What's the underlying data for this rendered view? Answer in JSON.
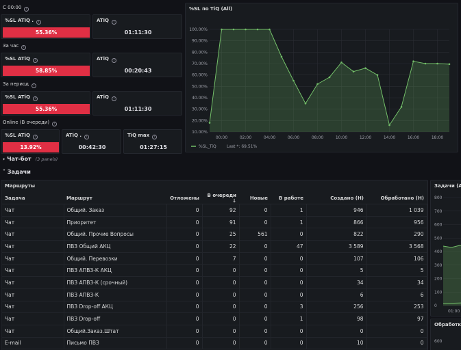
{
  "sla": {
    "c_header": "С 00:00",
    "c_sl_label": "%SL ATiQ .",
    "c_sl_value": "55.36%",
    "c_atiq_label": "ATiQ",
    "c_atiq_value": "01:11:30",
    "hour_header": "За час",
    "hour_sl_label": "%SL ATiQ",
    "hour_sl_value": "58.85%",
    "hour_atiq_label": "ATiQ",
    "hour_atiq_value": "00:20:43",
    "period_header": "За период",
    "period_sl_label": "%SL ATiQ",
    "period_sl_value": "55.36%",
    "period_atiq_label": "ATiQ",
    "period_atiq_value": "01:11:30",
    "online_header": "Online (В очереди)",
    "online_sl_label": "%SL ATiQ",
    "online_sl_value": "13.92%",
    "online_atiq_label": "ATiQ .",
    "online_atiq_value": "00:42:30",
    "online_max_label": "TiQ max",
    "online_max_value": "01:27:15"
  },
  "sections": {
    "chatbot": "Чат-бот",
    "chatbot_sub": "(3 panels)",
    "tasks": "Задачи"
  },
  "routes_panel": {
    "title": "Маршруты",
    "columns": [
      "Задача",
      "Маршрут",
      "Отложены",
      "В очереди ↓",
      "Новые",
      "В работе",
      "Создано (Н)",
      "Обработано (Н)"
    ],
    "rows": [
      [
        "Чат",
        "Общий. Заказ",
        "0",
        "92",
        "0",
        "1",
        "946",
        "1 039"
      ],
      [
        "Чат",
        "Приоритет",
        "0",
        "91",
        "0",
        "1",
        "866",
        "956"
      ],
      [
        "Чат",
        "Общий. Прочие Вопросы",
        "0",
        "25",
        "561",
        "0",
        "822",
        "290"
      ],
      [
        "Чат",
        "ПВЗ Общий АКЦ",
        "0",
        "22",
        "0",
        "47",
        "3 589",
        "3 568"
      ],
      [
        "Чат",
        "Общий. Перевозки",
        "0",
        "7",
        "0",
        "0",
        "107",
        "106"
      ],
      [
        "Чат",
        "ПВЗ АПВЗ-К АКЦ",
        "0",
        "0",
        "0",
        "0",
        "5",
        "5"
      ],
      [
        "Чат",
        "ПВЗ АПВЗ-К (срочный)",
        "0",
        "0",
        "0",
        "0",
        "34",
        "34"
      ],
      [
        "Чат",
        "ПВЗ АПВЗ-К",
        "0",
        "0",
        "0",
        "0",
        "6",
        "6"
      ],
      [
        "Чат",
        "ПВЗ Drop-off АКЦ",
        "0",
        "0",
        "0",
        "3",
        "256",
        "253"
      ],
      [
        "Чат",
        "ПВЗ Drop-off",
        "0",
        "0",
        "0",
        "1",
        "98",
        "97"
      ],
      [
        "Чат",
        "Общий.Заказ.Штат",
        "0",
        "0",
        "0",
        "0",
        "0",
        "0"
      ],
      [
        "E-mail",
        "Письмо ПВЗ",
        "0",
        "0",
        "0",
        "0",
        "10",
        "0"
      ]
    ]
  },
  "tasks_mini": {
    "title": "Задачи (All)",
    "y_ticks": [
      "800",
      "700",
      "600",
      "500",
      "400",
      "300",
      "200",
      "100",
      "0"
    ],
    "x_tick": "01:00",
    "second_title": "Обработка",
    "second_tick": "600"
  },
  "chart_data": {
    "type": "area",
    "title": "%SL по TiQ (All)",
    "x": [
      "23:00",
      "00:00",
      "01:00",
      "02:00",
      "03:00",
      "04:00",
      "05:00",
      "06:00",
      "07:00",
      "08:00",
      "09:00",
      "10:00",
      "11:00",
      "12:00",
      "13:00",
      "14:00",
      "15:00",
      "16:00",
      "17:00",
      "18:00",
      "18:30"
    ],
    "x_tick_labels": [
      "00:00",
      "02:00",
      "04:00",
      "06:00",
      "08:00",
      "10:00",
      "12:00",
      "14:00",
      "16:00",
      "18:00"
    ],
    "y_tick_labels": [
      "100.00%",
      "90.00%",
      "80.00%",
      "70.00%",
      "60.00%",
      "50.00%",
      "40.00%",
      "30.00%",
      "20.00%",
      "10.00%"
    ],
    "ylim": [
      10,
      100
    ],
    "series": [
      {
        "name": "%SL_TiQ",
        "values": [
          18,
          100,
          100,
          100,
          100,
          100,
          76,
          55,
          35,
          52,
          58,
          71,
          63,
          66,
          60,
          16,
          32,
          72,
          70,
          70,
          69.5
        ]
      }
    ],
    "legend_text": "%SL_TiQ",
    "legend_last": "Last *: 69.51%",
    "legend_position": "bottom-left",
    "line_color": "#73bf69",
    "grid": true
  },
  "colors": {
    "red": "#e02f44",
    "green": "#73bf69"
  }
}
